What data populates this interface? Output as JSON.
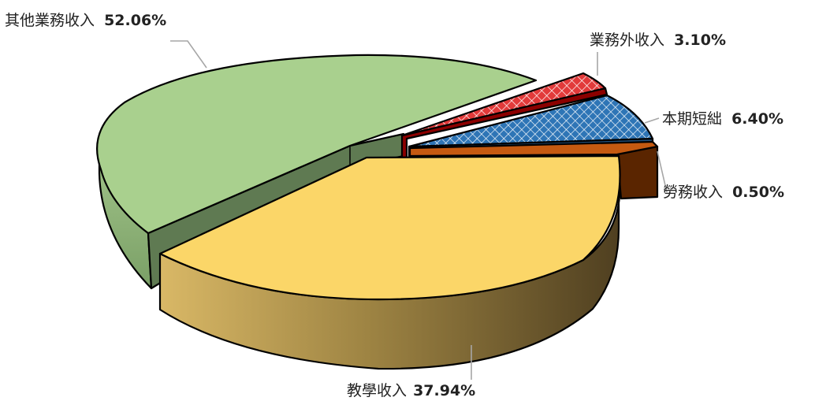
{
  "chart_data": {
    "type": "pie",
    "title": "",
    "slices": [
      {
        "name": "其他業務收入",
        "value": 52.06,
        "value_label": "52.06%",
        "color": "#a9d08e",
        "side_color": "#90b879",
        "inner_color": "#5f7a52"
      },
      {
        "name": "業務外收入",
        "value": 3.1,
        "value_label": "3.10%",
        "color": "#e03030",
        "side_color": "#8b0000",
        "pattern": "crosshatch"
      },
      {
        "name": "本期短絀",
        "value": 6.4,
        "value_label": "6.40%",
        "color": "#2e75b6",
        "side_color": "#1f4e79",
        "pattern": "crosshatch"
      },
      {
        "name": "勞務收入",
        "value": 0.5,
        "value_label": "0.50%",
        "color": "#c55a11",
        "side_color": "#5a2500"
      },
      {
        "name": "教學收入",
        "value": 37.94,
        "value_label": "37.94%",
        "color": "#fbd668",
        "side_color": "#b3974a",
        "side_dark": "#5e4a26"
      }
    ],
    "exploded": true,
    "style": "3d"
  }
}
